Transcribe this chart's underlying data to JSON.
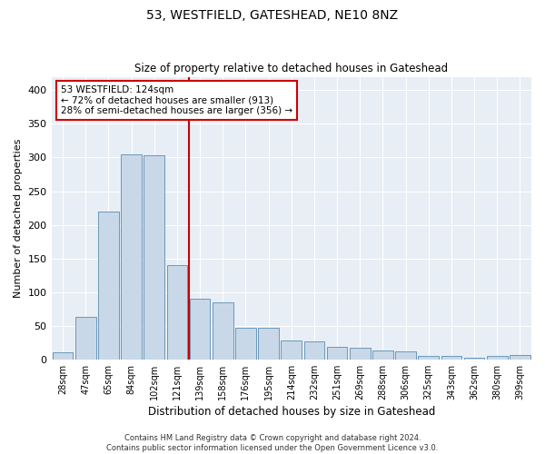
{
  "title": "53, WESTFIELD, GATESHEAD, NE10 8NZ",
  "subtitle": "Size of property relative to detached houses in Gateshead",
  "xlabel": "Distribution of detached houses by size in Gateshead",
  "ylabel": "Number of detached properties",
  "bar_color": "#c8d8e8",
  "bar_edge_color": "#5a8db0",
  "background_color": "#e8eef5",
  "categories": [
    "28sqm",
    "47sqm",
    "65sqm",
    "84sqm",
    "102sqm",
    "121sqm",
    "139sqm",
    "158sqm",
    "176sqm",
    "195sqm",
    "214sqm",
    "232sqm",
    "251sqm",
    "269sqm",
    "288sqm",
    "306sqm",
    "325sqm",
    "343sqm",
    "362sqm",
    "380sqm",
    "399sqm"
  ],
  "values": [
    10,
    63,
    220,
    305,
    303,
    140,
    90,
    85,
    47,
    47,
    28,
    27,
    18,
    17,
    13,
    12,
    5,
    5,
    3,
    5,
    7
  ],
  "vline_index": 5,
  "vline_color": "#cc0000",
  "annotation_line1": "53 WESTFIELD: 124sqm",
  "annotation_line2": "← 72% of detached houses are smaller (913)",
  "annotation_line3": "28% of semi-detached houses are larger (356) →",
  "annotation_box_facecolor": "white",
  "annotation_box_edgecolor": "#cc0000",
  "ylim": [
    0,
    420
  ],
  "yticks": [
    0,
    50,
    100,
    150,
    200,
    250,
    300,
    350,
    400
  ],
  "footer_line1": "Contains HM Land Registry data © Crown copyright and database right 2024.",
  "footer_line2": "Contains public sector information licensed under the Open Government Licence v3.0."
}
